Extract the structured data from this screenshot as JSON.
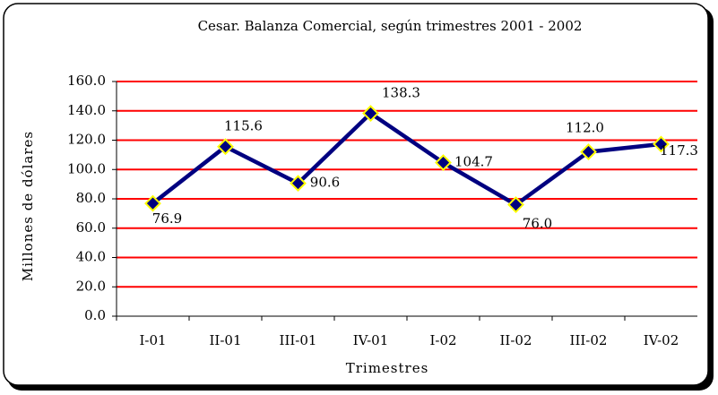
{
  "chart_data": {
    "type": "line",
    "title": "Cesar. Balanza Comercial, según trimestres 2001 - 2002",
    "x_label": "Trimestres",
    "y_label": "Millones de dólares",
    "categories": [
      "I-01",
      "II-01",
      "III-01",
      "IV-01",
      "I-02",
      "II-02",
      "III-02",
      "IV-02"
    ],
    "series": [
      {
        "color": "#000080",
        "marker_color": "#ffff00",
        "values": [
          76.9,
          115.6,
          90.6,
          138.3,
          104.7,
          76.0,
          112.0,
          117.3
        ],
        "value_labels": [
          "76.9",
          "115.6",
          "90.6",
          "138.3",
          "104.7",
          "76.0",
          "112.0",
          "117.3"
        ]
      }
    ],
    "ylim": [
      0,
      160
    ],
    "yticks": [
      {
        "value": 0,
        "label": "0.0"
      },
      {
        "value": 20,
        "label": "20.0"
      },
      {
        "value": 40,
        "label": "40.0"
      },
      {
        "value": 60,
        "label": "60.0"
      },
      {
        "value": 80,
        "label": "80.0"
      },
      {
        "value": 100,
        "label": "100.0"
      },
      {
        "value": 120,
        "label": "120.0"
      },
      {
        "value": 140,
        "label": "140.0"
      },
      {
        "value": 160,
        "label": "160.0"
      }
    ],
    "grid": true,
    "grid_color": "#ff0000"
  }
}
